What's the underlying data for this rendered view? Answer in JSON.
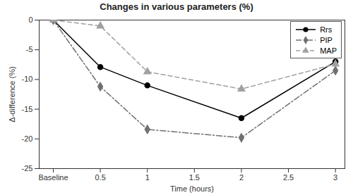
{
  "chart_data": {
    "type": "line",
    "title": "Changes in various parameters (%)",
    "x_label": "Time (hours)",
    "y_label": "Δ-difference (%)",
    "x": [
      0,
      0.5,
      1,
      2,
      3
    ],
    "series": [
      {
        "name": "Rrs",
        "color": "#000000",
        "marker": "circle",
        "line_style": "solid",
        "values": [
          0,
          -7.9,
          -11,
          -16.5,
          -7
        ]
      },
      {
        "name": "PIP",
        "color": "#707070",
        "marker": "diamond",
        "line_style": "dashdot",
        "values": [
          0,
          -11.2,
          -18.4,
          -19.8,
          -8.5
        ]
      },
      {
        "name": "MAP",
        "color": "#a0a0a0",
        "marker": "triangle",
        "line_style": "dashed",
        "values": [
          0,
          -1,
          -8.7,
          -11.6,
          -7.4
        ]
      }
    ],
    "xlim": [
      -0.15,
      3.1
    ],
    "xticks": [
      {
        "value": 0,
        "label": "Baseline"
      },
      0.5,
      1,
      1.5,
      2,
      2.5,
      3
    ],
    "ylim": [
      -25,
      0
    ],
    "yticks": [
      0,
      -5,
      -10,
      -15,
      -20,
      -25
    ],
    "grid": false,
    "legend": "top-right"
  }
}
